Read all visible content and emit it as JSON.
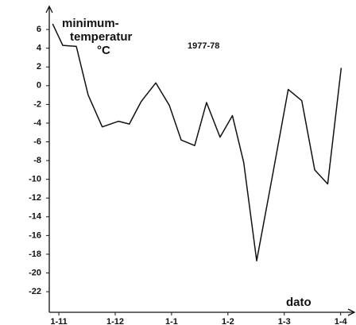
{
  "chart_data": {
    "type": "line",
    "title_lines": [
      "minimum-",
      "temperatur",
      "°C"
    ],
    "subtitle": "1977-78",
    "x_label": "dato",
    "x": [
      -0.11,
      0.07,
      0.31,
      0.52,
      0.77,
      1.06,
      1.25,
      1.46,
      1.72,
      1.96,
      2.17,
      2.41,
      2.62,
      2.86,
      3.08,
      3.28,
      3.51,
      3.8,
      4.07,
      4.31,
      4.54,
      4.77,
      5.01
    ],
    "series": [
      {
        "color": "#111111",
        "values": [
          6.6,
          4.3,
          4.2,
          -1.0,
          -4.4,
          -3.8,
          -4.1,
          -1.7,
          0.3,
          -2.1,
          -5.8,
          -6.4,
          -1.8,
          -5.5,
          -3.2,
          -8.2,
          -18.7,
          -9.3,
          -0.4,
          -1.6,
          -9.0,
          -10.5,
          1.9
        ]
      }
    ],
    "xlim": [
      -0.17,
      5.23
    ],
    "xticks": [
      {
        "value": 0,
        "label": "1-11"
      },
      {
        "value": 1,
        "label": "1-12"
      },
      {
        "value": 2,
        "label": "1-1"
      },
      {
        "value": 3,
        "label": "1-2"
      },
      {
        "value": 4,
        "label": "1-3"
      },
      {
        "value": 5,
        "label": "1-4"
      }
    ],
    "ylim": [
      -24.2,
      8.3
    ],
    "yticks": [
      6,
      4,
      2,
      0,
      -2,
      -4,
      -6,
      -8,
      -10,
      -12,
      -14,
      -16,
      -18,
      -20,
      -22
    ],
    "grid": false
  }
}
